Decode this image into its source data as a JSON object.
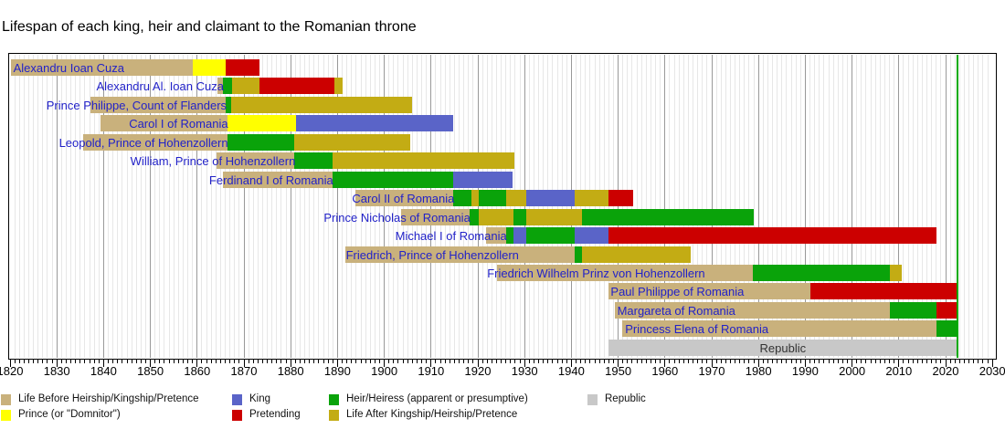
{
  "title": "Lifespan of each king, heir and claimant to the Romanian throne",
  "chart_data": {
    "type": "bar",
    "subtype": "timeline-gantt",
    "x_axis": {
      "start": 1820,
      "end": 2030,
      "major_step": 10,
      "minor_step": 1,
      "tick_labels": [
        "1820",
        "1830",
        "1840",
        "1850",
        "1860",
        "1870",
        "1880",
        "1890",
        "1900",
        "1910",
        "1920",
        "1930",
        "1940",
        "1950",
        "1960",
        "1970",
        "1980",
        "1990",
        "2000",
        "2010",
        "2020",
        "2030"
      ]
    },
    "today_line_year": 2022.45,
    "grid": true,
    "legend_position": "bottom",
    "colors": {
      "before": "#C9B17C",
      "prince": "#FFFF00",
      "king": "#5A64C8",
      "heir": "#0AA30A",
      "pretending": "#CC0000",
      "after": "#C3AC14",
      "republic": "#C8C8C8",
      "label_text": "#2222C8",
      "republic_label_text": "#333333",
      "today_line": "#00AA00",
      "grid_minor": "#E7E7E7",
      "grid_major": "#999999",
      "axis_text": "#000000"
    },
    "legend": [
      {
        "status": "before",
        "label": "Life Before Heirship/Kingship/Pretence"
      },
      {
        "status": "king",
        "label": "King"
      },
      {
        "status": "heir",
        "label": "Heir/Heiress (apparent or presumptive)"
      },
      {
        "status": "republic",
        "label": "Republic"
      },
      {
        "status": "prince",
        "label": "Prince (or \"Domnitor\")"
      },
      {
        "status": "pretending",
        "label": "Pretending"
      },
      {
        "status": "after",
        "label": "Life After Kingship/Heirship/Pretence"
      }
    ],
    "people": [
      {
        "name": "Alexandru Ioan Cuza",
        "label_align": "left",
        "label_anchor": 1820.7,
        "segments": [
          {
            "from": 1820.2,
            "to": 1859.0,
            "status": "before"
          },
          {
            "from": 1859.0,
            "to": 1866.1,
            "status": "prince"
          },
          {
            "from": 1866.1,
            "to": 1873.4,
            "status": "pretending"
          }
        ]
      },
      {
        "name": "Alexandru Al. Ioan Cuza",
        "label_align": "right",
        "label_anchor": 1865.5,
        "segments": [
          {
            "from": 1864.4,
            "to": 1865.5,
            "status": "before"
          },
          {
            "from": 1865.5,
            "to": 1867.5,
            "status": "heir"
          },
          {
            "from": 1867.5,
            "to": 1873.4,
            "status": "after"
          },
          {
            "from": 1873.4,
            "to": 1889.4,
            "status": "pretending"
          },
          {
            "from": 1889.4,
            "to": 1891.0,
            "status": "after"
          }
        ]
      },
      {
        "name": "Prince Philippe, Count of Flanders",
        "label_align": "right",
        "label_anchor": 1866.1,
        "segments": [
          {
            "from": 1837.2,
            "to": 1866.1,
            "status": "before"
          },
          {
            "from": 1866.1,
            "to": 1867.3,
            "status": "heir"
          },
          {
            "from": 1867.3,
            "to": 1905.9,
            "status": "after"
          }
        ]
      },
      {
        "name": "Carol I of Romania",
        "label_align": "right",
        "label_anchor": 1866.4,
        "segments": [
          {
            "from": 1839.3,
            "to": 1866.4,
            "status": "before"
          },
          {
            "from": 1866.4,
            "to": 1881.2,
            "status": "prince"
          },
          {
            "from": 1881.2,
            "to": 1914.8,
            "status": "king"
          }
        ]
      },
      {
        "name": "Leopold, Prince of Hohenzollern",
        "label_align": "right",
        "label_anchor": 1866.4,
        "segments": [
          {
            "from": 1835.7,
            "to": 1866.4,
            "status": "before"
          },
          {
            "from": 1866.4,
            "to": 1880.8,
            "status": "heir"
          },
          {
            "from": 1880.8,
            "to": 1905.5,
            "status": "after"
          }
        ]
      },
      {
        "name": "William, Prince of Hohenzollern",
        "label_align": "right",
        "label_anchor": 1880.8,
        "segments": [
          {
            "from": 1864.2,
            "to": 1880.8,
            "status": "before"
          },
          {
            "from": 1880.8,
            "to": 1888.9,
            "status": "heir"
          },
          {
            "from": 1888.9,
            "to": 1927.8,
            "status": "after"
          }
        ]
      },
      {
        "name": "Ferdinand I of Romania",
        "label_align": "right",
        "label_anchor": 1888.9,
        "segments": [
          {
            "from": 1865.6,
            "to": 1888.9,
            "status": "before"
          },
          {
            "from": 1888.9,
            "to": 1914.8,
            "status": "heir"
          },
          {
            "from": 1914.8,
            "to": 1927.5,
            "status": "king"
          }
        ]
      },
      {
        "name": "Carol II of Romania",
        "label_align": "right",
        "label_anchor": 1914.8,
        "segments": [
          {
            "from": 1893.8,
            "to": 1914.8,
            "status": "before"
          },
          {
            "from": 1914.8,
            "to": 1918.7,
            "status": "heir"
          },
          {
            "from": 1918.7,
            "to": 1920.1,
            "status": "after"
          },
          {
            "from": 1920.1,
            "to": 1926.0,
            "status": "heir"
          },
          {
            "from": 1926.0,
            "to": 1930.4,
            "status": "after"
          },
          {
            "from": 1930.4,
            "to": 1940.7,
            "status": "king"
          },
          {
            "from": 1940.7,
            "to": 1948.0,
            "status": "after"
          },
          {
            "from": 1948.0,
            "to": 1953.3,
            "status": "pretending"
          }
        ]
      },
      {
        "name": "Prince Nicholas of Romania",
        "label_align": "right",
        "label_anchor": 1918.2,
        "segments": [
          {
            "from": 1903.6,
            "to": 1918.2,
            "status": "before"
          },
          {
            "from": 1918.2,
            "to": 1920.1,
            "status": "heir"
          },
          {
            "from": 1920.1,
            "to": 1927.6,
            "status": "after"
          },
          {
            "from": 1927.6,
            "to": 1930.4,
            "status": "heir"
          },
          {
            "from": 1930.4,
            "to": 1942.3,
            "status": "after"
          },
          {
            "from": 1942.3,
            "to": 1979.0,
            "status": "heir"
          }
        ]
      },
      {
        "name": "Michael I of Romania",
        "label_align": "right",
        "label_anchor": 1926.0,
        "segments": [
          {
            "from": 1921.8,
            "to": 1926.0,
            "status": "before"
          },
          {
            "from": 1926.0,
            "to": 1927.6,
            "status": "heir"
          },
          {
            "from": 1927.6,
            "to": 1930.4,
            "status": "king"
          },
          {
            "from": 1930.4,
            "to": 1940.7,
            "status": "heir"
          },
          {
            "from": 1940.7,
            "to": 1948.0,
            "status": "king"
          },
          {
            "from": 1948.0,
            "to": 2018.0,
            "status": "pretending"
          }
        ]
      },
      {
        "name": "Friedrich, Prince of Hohenzollern",
        "label_align": "left",
        "label_anchor": 1891.8,
        "segments": [
          {
            "from": 1891.6,
            "to": 1940.7,
            "status": "before"
          },
          {
            "from": 1940.7,
            "to": 1942.3,
            "status": "heir"
          },
          {
            "from": 1942.3,
            "to": 1965.6,
            "status": "after"
          }
        ]
      },
      {
        "name": "Friedrich Wilhelm Prinz von Hohenzollern",
        "label_align": "left",
        "label_anchor": 1922.0,
        "segments": [
          {
            "from": 1924.1,
            "to": 1978.8,
            "status": "before"
          },
          {
            "from": 1978.8,
            "to": 2008.0,
            "status": "heir"
          },
          {
            "from": 2008.0,
            "to": 2010.7,
            "status": "after"
          }
        ]
      },
      {
        "name": "Paul Philippe of Romania",
        "label_align": "left",
        "label_anchor": 1948.4,
        "segments": [
          {
            "from": 1948.0,
            "to": 1991.0,
            "status": "before"
          },
          {
            "from": 1991.0,
            "to": 2022.45,
            "status": "pretending"
          }
        ]
      },
      {
        "name": "Margareta of Romania",
        "label_align": "left",
        "label_anchor": 1949.8,
        "segments": [
          {
            "from": 1949.2,
            "to": 2008.0,
            "status": "before"
          },
          {
            "from": 2008.0,
            "to": 2018.0,
            "status": "heir"
          },
          {
            "from": 2018.0,
            "to": 2022.45,
            "status": "pretending"
          }
        ]
      },
      {
        "name": "Princess Elena of Romania",
        "label_align": "left",
        "label_anchor": 1951.5,
        "segments": [
          {
            "from": 1950.9,
            "to": 2018.0,
            "status": "before"
          },
          {
            "from": 2018.0,
            "to": 2022.45,
            "status": "heir"
          }
        ]
      },
      {
        "name": "Republic",
        "label_align": "center",
        "label_anchor": 1985.2,
        "is_republic": true,
        "segments": [
          {
            "from": 1948.0,
            "to": 2022.45,
            "status": "republic"
          }
        ]
      }
    ]
  }
}
